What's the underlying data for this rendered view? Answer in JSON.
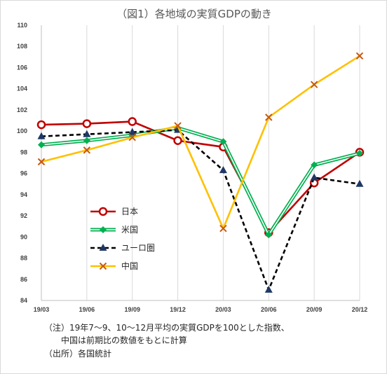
{
  "chart_data": {
    "type": "line",
    "title": "（図1）各地域の実質GDPの動き",
    "xlabel": "",
    "ylabel": "",
    "x": [
      "19/03",
      "19/06",
      "19/09",
      "19/12",
      "20/03",
      "20/06",
      "20/09",
      "20/12"
    ],
    "ylim": [
      84,
      110
    ],
    "yticks": [
      84,
      86,
      88,
      90,
      92,
      94,
      96,
      98,
      100,
      102,
      104,
      106,
      108,
      110
    ],
    "grid": "vertical",
    "legend_position": "lower-left",
    "series": [
      {
        "name": "日本",
        "color": "#c00000",
        "marker": "circle",
        "dash": "solid",
        "values": [
          100.6,
          100.7,
          100.9,
          99.1,
          98.5,
          90.4,
          95.1,
          98.0
        ]
      },
      {
        "name": "米国",
        "color": "#00b050",
        "marker": "diamond",
        "dash": "double",
        "values": [
          98.7,
          99.1,
          99.6,
          100.3,
          99.0,
          90.2,
          96.8,
          97.9
        ]
      },
      {
        "name": "ユーロ圏",
        "color": "#000000",
        "marker": "triangle",
        "dash": "dashed",
        "values": [
          99.5,
          99.7,
          99.9,
          100.1,
          96.3,
          85.0,
          95.6,
          95.0
        ]
      },
      {
        "name": "中国",
        "color": "#ffc000",
        "marker": "x",
        "dash": "solid",
        "values": [
          97.1,
          98.2,
          99.4,
          100.5,
          90.8,
          101.3,
          104.4,
          107.1
        ]
      }
    ]
  },
  "notes": {
    "line1": "（注）19年7～9、10～12月平均の実質GDPを100とした指数、",
    "line2": "中国は前期比の数値をもとに計算",
    "line3": "（出所）各国統計"
  }
}
